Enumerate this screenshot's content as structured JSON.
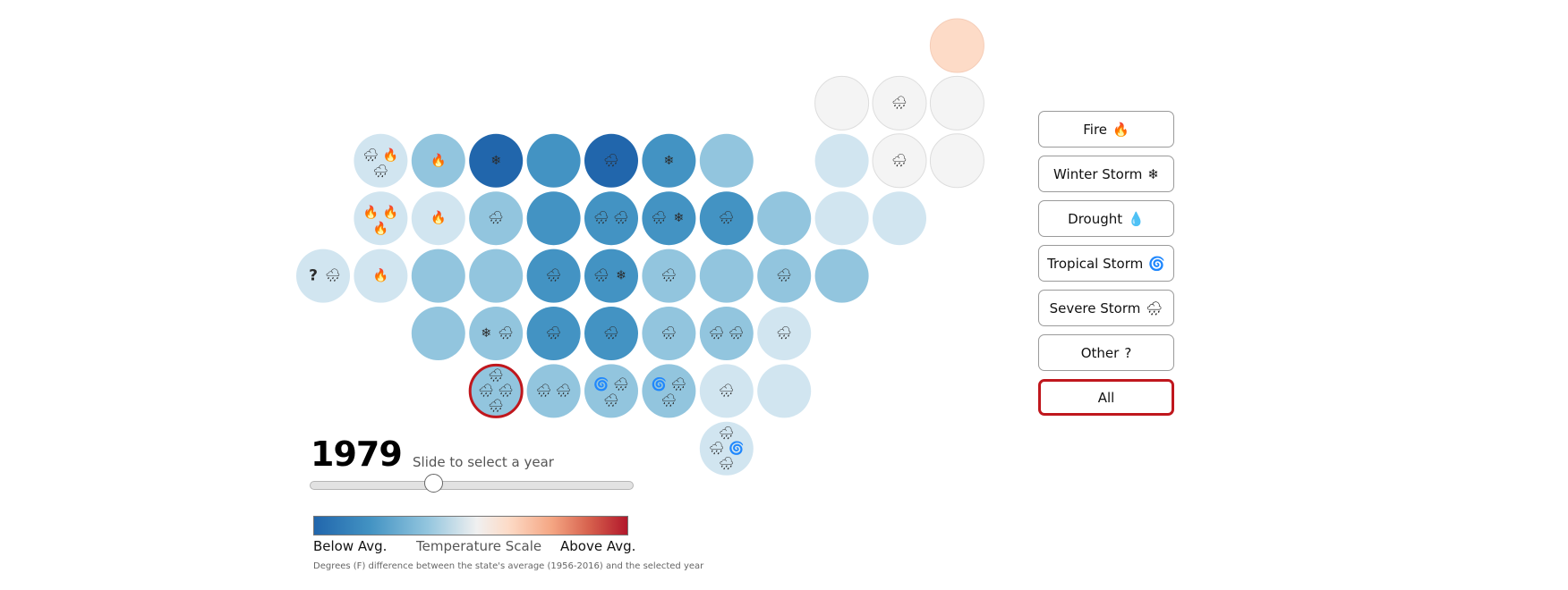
{
  "controls": {
    "year": "1979",
    "slider_label": "Slide to select a year",
    "slider": {
      "min": 1956,
      "max": 2016,
      "value": 1979
    }
  },
  "filters": [
    {
      "label": "Fire",
      "icon": "🔥",
      "icon_name": "fire-icon",
      "selected": false
    },
    {
      "label": "Winter Storm",
      "icon": "❄",
      "icon_name": "snowflake-icon",
      "selected": false
    },
    {
      "label": "Drought",
      "icon": "💧",
      "icon_name": "droplet-icon",
      "selected": false
    },
    {
      "label": "Tropical Storm",
      "icon": "🌀",
      "icon_name": "hurricane-icon",
      "selected": false
    },
    {
      "label": "Severe Storm",
      "icon": "🌧",
      "icon_name": "rain-cloud-icon",
      "selected": false
    },
    {
      "label": "Other",
      "icon": "?",
      "icon_name": "question-icon",
      "selected": false
    },
    {
      "label": "All",
      "icon": "",
      "icon_name": "",
      "selected": true
    }
  ],
  "legend": {
    "left": "Below Avg.",
    "title": "Temperature Scale",
    "right": "Above Avg.",
    "note": "Degrees (F) difference between the state's average (1956-2016) and the selected year",
    "colors": [
      "#2166ac",
      "#4393c3",
      "#92c5de",
      "#f0f0f0",
      "#fddbc7",
      "#f4a582",
      "#d6604d",
      "#b2182b"
    ]
  },
  "event_glyphs": {
    "fire": "🔥",
    "winter": "❄",
    "tropical": "🌀",
    "severe": "🌧",
    "other": "?"
  },
  "chart_data": {
    "type": "heatmap",
    "highlighted": {
      "row": 6,
      "col": 3
    },
    "color_scale": {
      "dark_blue": "#2166ac",
      "blue": "#4393c3",
      "light_blue": "#92c5de",
      "pale_blue": "#d1e5f0",
      "neutral": "#f4f4f4",
      "peach": "#fddbc7"
    },
    "tiles": [
      {
        "row": 0,
        "col": 11,
        "color": "peach",
        "events": []
      },
      {
        "row": 1,
        "col": 9,
        "color": "neutral",
        "events": []
      },
      {
        "row": 1,
        "col": 10,
        "color": "neutral",
        "events": [
          "severe"
        ]
      },
      {
        "row": 1,
        "col": 11,
        "color": "neutral",
        "events": []
      },
      {
        "row": 2,
        "col": 1,
        "color": "pale_blue",
        "events": [
          "severe",
          "fire",
          "severe"
        ]
      },
      {
        "row": 2,
        "col": 2,
        "color": "light_blue",
        "events": [
          "fire"
        ]
      },
      {
        "row": 2,
        "col": 3,
        "color": "dark_blue",
        "events": [
          "winter"
        ]
      },
      {
        "row": 2,
        "col": 4,
        "color": "blue",
        "events": []
      },
      {
        "row": 2,
        "col": 5,
        "color": "dark_blue",
        "events": [
          "severe"
        ]
      },
      {
        "row": 2,
        "col": 6,
        "color": "blue",
        "events": [
          "winter"
        ]
      },
      {
        "row": 2,
        "col": 7,
        "color": "light_blue",
        "events": []
      },
      {
        "row": 2,
        "col": 9,
        "color": "pale_blue",
        "events": []
      },
      {
        "row": 2,
        "col": 10,
        "color": "neutral",
        "events": [
          "severe"
        ]
      },
      {
        "row": 2,
        "col": 11,
        "color": "neutral",
        "events": []
      },
      {
        "row": 3,
        "col": 1,
        "color": "pale_blue",
        "events": [
          "fire",
          "fire",
          "fire"
        ]
      },
      {
        "row": 3,
        "col": 2,
        "color": "pale_blue",
        "events": [
          "fire"
        ]
      },
      {
        "row": 3,
        "col": 3,
        "color": "light_blue",
        "events": [
          "severe"
        ]
      },
      {
        "row": 3,
        "col": 4,
        "color": "blue",
        "events": []
      },
      {
        "row": 3,
        "col": 5,
        "color": "blue",
        "events": [
          "severe",
          "severe"
        ]
      },
      {
        "row": 3,
        "col": 6,
        "color": "blue",
        "events": [
          "severe",
          "winter"
        ]
      },
      {
        "row": 3,
        "col": 7,
        "color": "blue",
        "events": [
          "severe"
        ]
      },
      {
        "row": 3,
        "col": 8,
        "color": "light_blue",
        "events": []
      },
      {
        "row": 3,
        "col": 9,
        "color": "pale_blue",
        "events": []
      },
      {
        "row": 3,
        "col": 10,
        "color": "pale_blue",
        "events": []
      },
      {
        "row": 4,
        "col": 0,
        "color": "pale_blue",
        "events": [
          "other",
          "severe"
        ]
      },
      {
        "row": 4,
        "col": 1,
        "color": "pale_blue",
        "events": [
          "fire"
        ]
      },
      {
        "row": 4,
        "col": 2,
        "color": "light_blue",
        "events": []
      },
      {
        "row": 4,
        "col": 3,
        "color": "light_blue",
        "events": []
      },
      {
        "row": 4,
        "col": 4,
        "color": "blue",
        "events": [
          "severe"
        ]
      },
      {
        "row": 4,
        "col": 5,
        "color": "blue",
        "events": [
          "severe",
          "winter"
        ]
      },
      {
        "row": 4,
        "col": 6,
        "color": "light_blue",
        "events": [
          "severe"
        ]
      },
      {
        "row": 4,
        "col": 7,
        "color": "light_blue",
        "events": []
      },
      {
        "row": 4,
        "col": 8,
        "color": "light_blue",
        "events": [
          "severe"
        ]
      },
      {
        "row": 4,
        "col": 9,
        "color": "light_blue",
        "events": []
      },
      {
        "row": 5,
        "col": 2,
        "color": "light_blue",
        "events": []
      },
      {
        "row": 5,
        "col": 3,
        "color": "light_blue",
        "events": [
          "winter",
          "severe"
        ]
      },
      {
        "row": 5,
        "col": 4,
        "color": "blue",
        "events": [
          "severe"
        ]
      },
      {
        "row": 5,
        "col": 5,
        "color": "blue",
        "events": [
          "severe"
        ]
      },
      {
        "row": 5,
        "col": 6,
        "color": "light_blue",
        "events": [
          "severe"
        ]
      },
      {
        "row": 5,
        "col": 7,
        "color": "light_blue",
        "events": [
          "severe",
          "severe"
        ]
      },
      {
        "row": 5,
        "col": 8,
        "color": "pale_blue",
        "events": [
          "severe"
        ]
      },
      {
        "row": 6,
        "col": 3,
        "color": "light_blue",
        "events": [
          "severe",
          "severe",
          "severe",
          "severe"
        ]
      },
      {
        "row": 6,
        "col": 4,
        "color": "light_blue",
        "events": [
          "severe",
          "severe"
        ]
      },
      {
        "row": 6,
        "col": 5,
        "color": "light_blue",
        "events": [
          "tropical",
          "severe",
          "severe"
        ]
      },
      {
        "row": 6,
        "col": 6,
        "color": "light_blue",
        "events": [
          "tropical",
          "severe",
          "severe"
        ]
      },
      {
        "row": 6,
        "col": 7,
        "color": "pale_blue",
        "events": [
          "severe"
        ]
      },
      {
        "row": 6,
        "col": 8,
        "color": "pale_blue",
        "events": []
      },
      {
        "row": 7,
        "col": 7,
        "color": "pale_blue",
        "events": [
          "severe",
          "severe",
          "tropical",
          "severe"
        ]
      }
    ]
  }
}
